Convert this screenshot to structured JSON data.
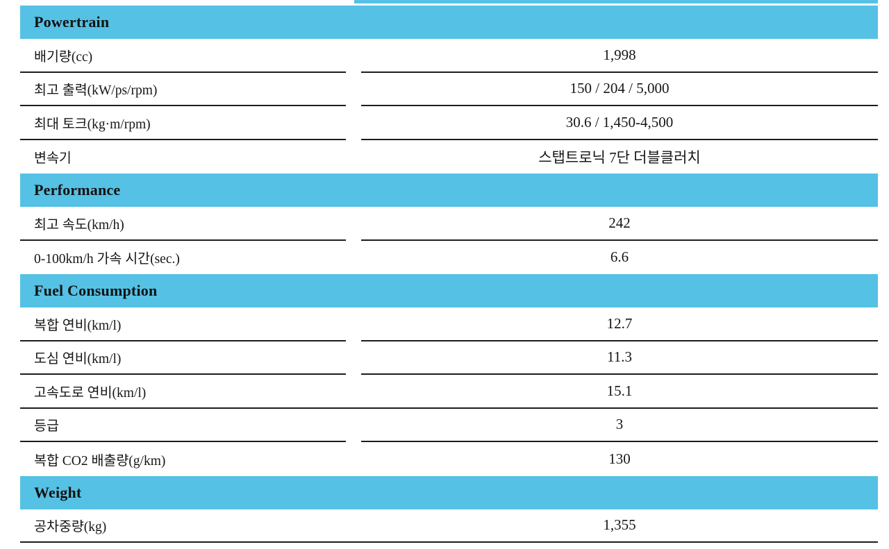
{
  "theme": {
    "accent_color": "#55C1E4",
    "divider_color": "#1c1c1c",
    "text_color": "#161616"
  },
  "top_strip": {
    "description": "cut-off cyan header band over value column"
  },
  "sections": [
    {
      "title": "Powertrain",
      "rows": [
        {
          "label": "배기량(cc)",
          "value": "1,998",
          "divider": "split"
        },
        {
          "label": "최고 출력(kW/ps/rpm)",
          "value": "150 / 204 / 5,000",
          "divider": "split"
        },
        {
          "label": "최대 토크(kg·m/rpm)",
          "value": "30.6 / 1,450-4,500",
          "divider": "split"
        },
        {
          "label": "변속기",
          "value": "스탭트로닉 7단 더블클러치",
          "divider": "none"
        }
      ]
    },
    {
      "title": "Performance",
      "rows": [
        {
          "label": "최고 속도(km/h)",
          "value": "242",
          "divider": "split"
        },
        {
          "label": "0-100km/h 가속 시간(sec.)",
          "value": "6.6",
          "divider": "none"
        }
      ]
    },
    {
      "title": "Fuel Consumption",
      "rows": [
        {
          "label": "복합 연비(km/l)",
          "value": "12.7",
          "divider": "split"
        },
        {
          "label": "도심 연비(km/l)",
          "value": "11.3",
          "divider": "split"
        },
        {
          "label": "고속도로 연비(km/l)",
          "value": "15.1",
          "divider": "full"
        },
        {
          "label": "등급",
          "value": "3",
          "divider": "split"
        },
        {
          "label": "복합 CO2 배출량(g/km)",
          "value": "130",
          "divider": "none"
        }
      ]
    },
    {
      "title": "Weight",
      "rows": [
        {
          "label": "공차중량(kg)",
          "value": "1,355",
          "divider": "full"
        }
      ]
    }
  ]
}
